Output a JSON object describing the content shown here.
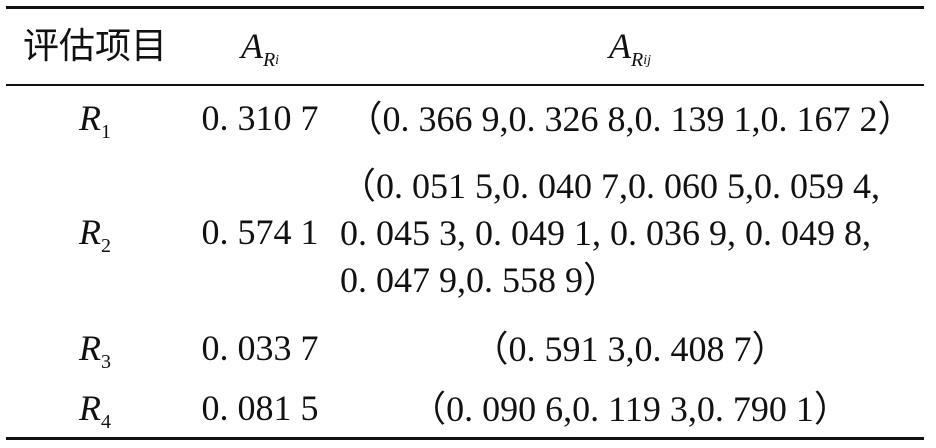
{
  "table": {
    "header": [
      {
        "text": "评估项目"
      },
      {
        "main": "A",
        "sub": "R",
        "subsub": "i"
      },
      {
        "main": "A",
        "sub": "R",
        "subsub": "ij"
      }
    ],
    "rows": [
      {
        "label": {
          "main": "R",
          "sub": "1"
        },
        "weight": "0. 310 7",
        "vector": [
          "（0. 366 9,0. 326 8,0. 139 1,0. 167 2）"
        ]
      },
      {
        "label": {
          "main": "R",
          "sub": "2"
        },
        "weight": "0. 574 1",
        "vector": [
          "（0. 051 5,0. 040 7,0. 060 5,0. 059 4,",
          "0. 045 3, 0. 049 1, 0. 036 9, 0. 049 8,",
          "0. 047 9,0. 558 9）"
        ]
      },
      {
        "label": {
          "main": "R",
          "sub": "3"
        },
        "weight": "0. 033 7",
        "vector": [
          "（0. 591 3,0. 408 7）"
        ]
      },
      {
        "label": {
          "main": "R",
          "sub": "4"
        },
        "weight": "0. 081 5",
        "vector": [
          "（0. 090 6,0. 119 3,0. 790 1）"
        ]
      }
    ]
  }
}
